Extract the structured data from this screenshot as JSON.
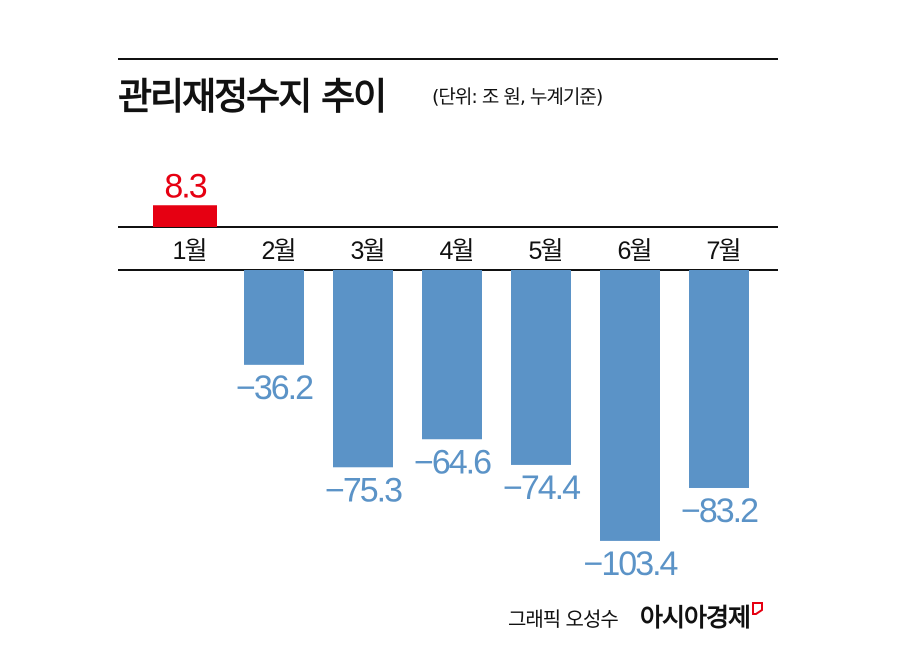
{
  "chart_data": {
    "type": "bar",
    "title": "관리재정수지 추이",
    "subtitle": "(단위: 조 원, 누계기준)",
    "categories": [
      "1월",
      "2월",
      "3월",
      "4월",
      "5월",
      "6월",
      "7월"
    ],
    "values": [
      8.3,
      -36.2,
      -75.3,
      -64.6,
      -74.4,
      -103.4,
      -83.2
    ],
    "data_labels": [
      "8.3",
      "−36.2",
      "−75.3",
      "−64.6",
      "−74.4",
      "−103.4",
      "−83.2"
    ],
    "colors": {
      "positive": "#e60012",
      "negative": "#5b93c7"
    },
    "grid": false,
    "legend": "none"
  },
  "footer": {
    "credit": "그래픽 오성수",
    "brand": "아시아경제"
  }
}
